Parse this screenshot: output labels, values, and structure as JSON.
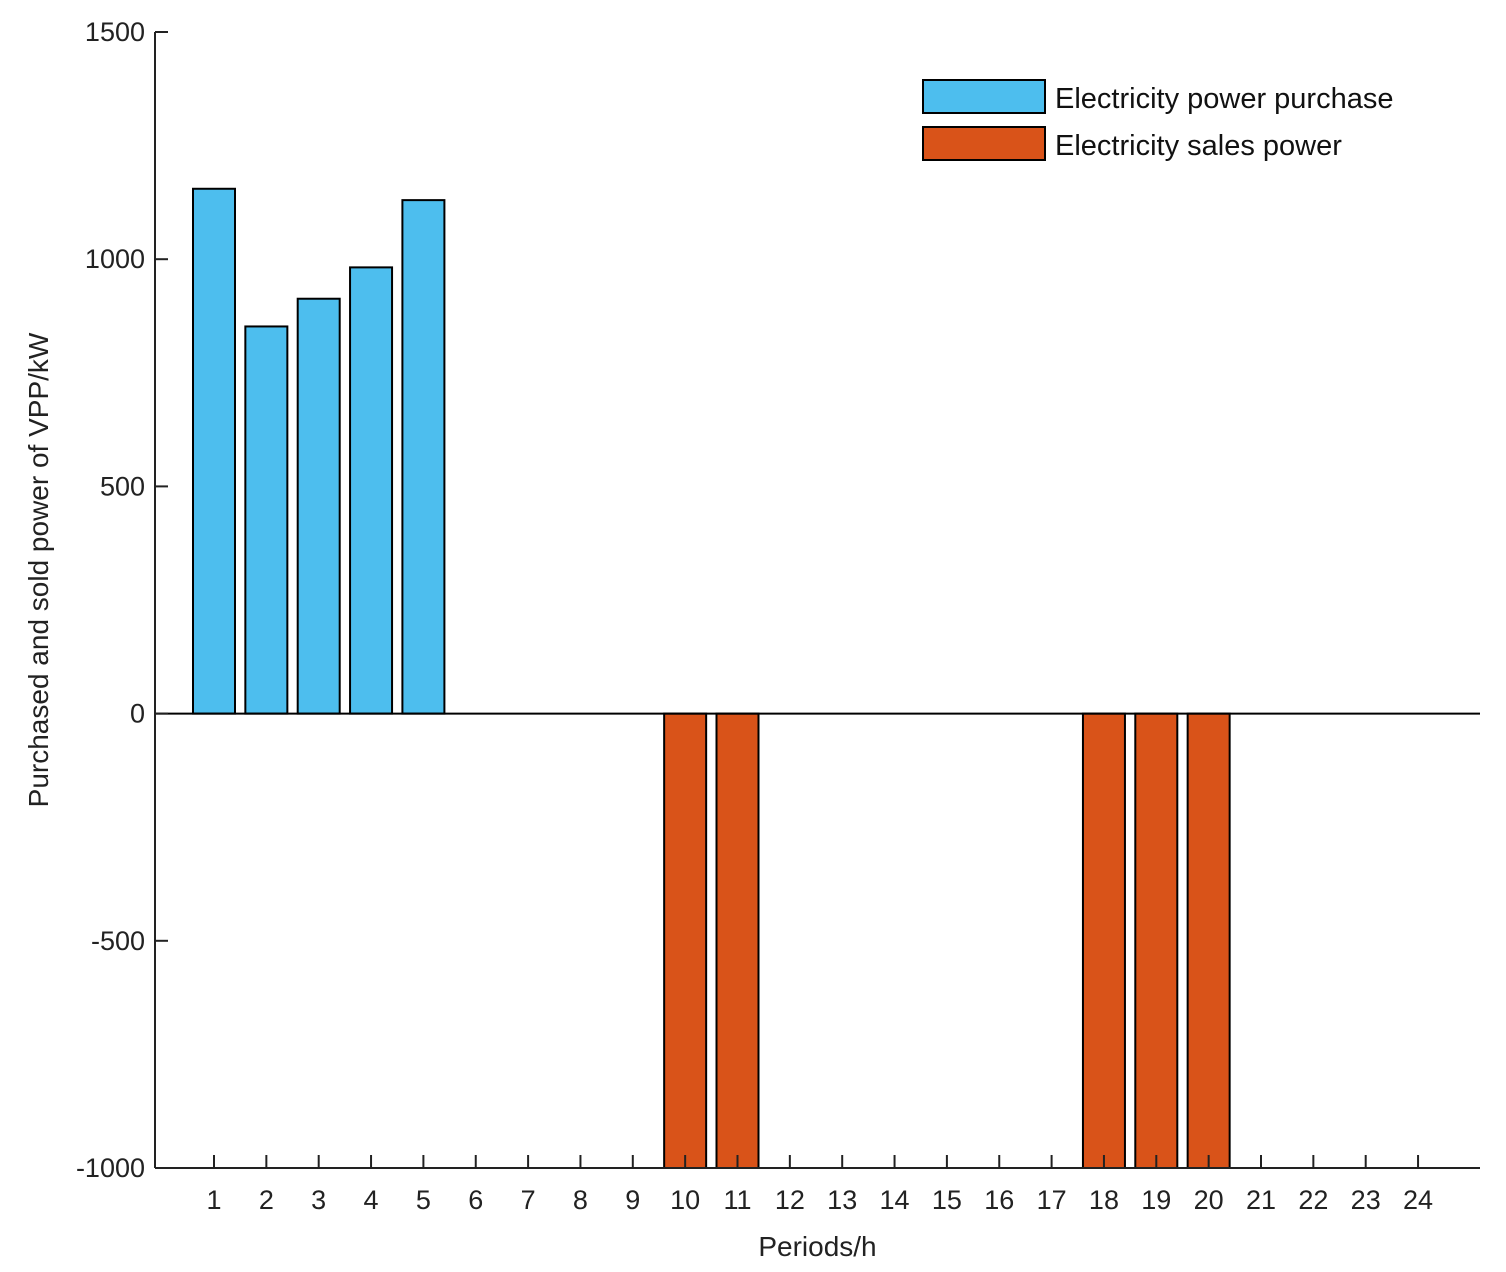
{
  "chart_data": {
    "type": "bar",
    "title": "",
    "xlabel": "Periods/h",
    "ylabel": "Purchased and sold power of VPP/kW",
    "ylim": [
      -1000,
      1500
    ],
    "yticks": [
      -1000,
      -500,
      0,
      500,
      1000,
      1500
    ],
    "categories": [
      "1",
      "2",
      "3",
      "4",
      "5",
      "6",
      "7",
      "8",
      "9",
      "10",
      "11",
      "12",
      "13",
      "14",
      "15",
      "16",
      "17",
      "18",
      "19",
      "20",
      "21",
      "22",
      "23",
      "24"
    ],
    "series": [
      {
        "name": "Electricity power purchase",
        "color": "#4DBEEE",
        "values": [
          1155,
          852,
          913,
          982,
          1130,
          0,
          0,
          0,
          0,
          0,
          0,
          0,
          0,
          0,
          0,
          0,
          0,
          0,
          0,
          0,
          0,
          0,
          0,
          0
        ]
      },
      {
        "name": "Electricity sales power",
        "color": "#D95319",
        "values": [
          0,
          0,
          0,
          0,
          0,
          0,
          0,
          0,
          0,
          -1000,
          -1000,
          0,
          0,
          0,
          0,
          0,
          0,
          -1000,
          -1000,
          -1000,
          0,
          0,
          0,
          0
        ]
      }
    ],
    "legend_position": "top-right",
    "grid": false
  }
}
